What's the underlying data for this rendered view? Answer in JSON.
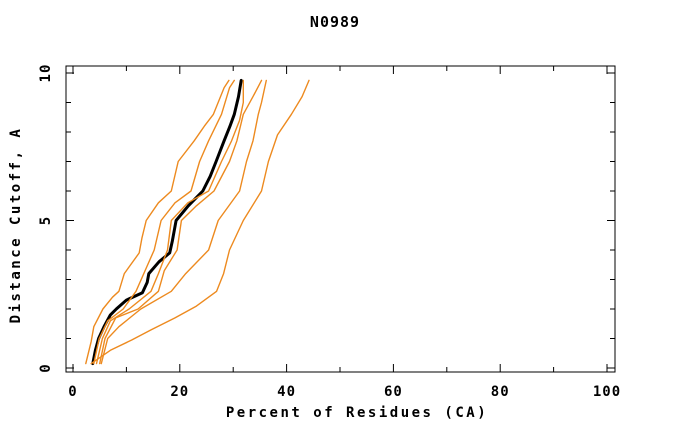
{
  "chart_data": {
    "type": "line",
    "title": "N0989",
    "xlabel": "Percent of Residues (CA)",
    "ylabel": "Distance Cutoff, A",
    "xlim": [
      0,
      100
    ],
    "ylim": [
      0,
      10
    ],
    "x_major_ticks": [
      0,
      20,
      40,
      60,
      80,
      100
    ],
    "x_minor_ticks": [
      10,
      30,
      50,
      70,
      90
    ],
    "x_tick_labels": [
      "0",
      "20",
      "40",
      "60",
      "80",
      "100"
    ],
    "y_major_ticks": [
      0,
      5,
      10
    ],
    "y_minor_ticks": [
      1,
      2,
      3,
      4,
      6,
      7,
      8,
      9
    ],
    "y_tick_labels": [
      "0",
      "5",
      "10"
    ],
    "grid": false,
    "legend_position": "none",
    "colors": {
      "main_model": "#000000",
      "reference_lines": "#ED8A1F",
      "frame": "#000000"
    },
    "series": [
      {
        "name": "main-model-black",
        "color": "#000000",
        "width": 3,
        "points": [
          [
            3.7,
            0.15
          ],
          [
            4.2,
            0.6
          ],
          [
            4.8,
            1.0
          ],
          [
            5.8,
            1.4
          ],
          [
            7.0,
            1.8
          ],
          [
            8.1,
            2.0
          ],
          [
            10.0,
            2.3
          ],
          [
            13.0,
            2.55
          ],
          [
            13.9,
            2.9
          ],
          [
            14.2,
            3.2
          ],
          [
            16.1,
            3.6
          ],
          [
            18.1,
            3.9
          ],
          [
            18.6,
            4.3
          ],
          [
            19.3,
            5.0
          ],
          [
            21.6,
            5.5
          ],
          [
            24.3,
            6.0
          ],
          [
            25.7,
            6.5
          ],
          [
            26.8,
            7.0
          ],
          [
            28.3,
            7.7
          ],
          [
            29.4,
            8.2
          ],
          [
            30.2,
            8.6
          ],
          [
            31.0,
            9.2
          ],
          [
            31.5,
            9.75
          ]
        ]
      },
      {
        "name": "reference-orange-1",
        "color": "#ED8A1F",
        "width": 1.4,
        "points": [
          [
            2.4,
            0.15
          ],
          [
            3.4,
            0.9
          ],
          [
            3.9,
            1.4
          ],
          [
            5.6,
            2.0
          ],
          [
            7.4,
            2.4
          ],
          [
            8.6,
            2.6
          ],
          [
            9.6,
            3.2
          ],
          [
            12.4,
            3.9
          ],
          [
            12.9,
            4.4
          ],
          [
            13.7,
            5.0
          ],
          [
            16.0,
            5.6
          ],
          [
            18.4,
            6.0
          ],
          [
            19.7,
            7.0
          ],
          [
            22.7,
            7.7
          ],
          [
            24.6,
            8.2
          ],
          [
            26.3,
            8.6
          ],
          [
            28.3,
            9.5
          ],
          [
            29.2,
            9.75
          ]
        ]
      },
      {
        "name": "reference-orange-2",
        "color": "#ED8A1F",
        "width": 1.4,
        "points": [
          [
            3.9,
            0.15
          ],
          [
            4.9,
            1.0
          ],
          [
            6.5,
            1.6
          ],
          [
            9.4,
            2.0
          ],
          [
            11.8,
            2.6
          ],
          [
            13.5,
            3.3
          ],
          [
            15.2,
            4.0
          ],
          [
            16.5,
            5.0
          ],
          [
            19.1,
            5.6
          ],
          [
            22.1,
            6.0
          ],
          [
            23.7,
            7.0
          ],
          [
            25.4,
            7.7
          ],
          [
            27.8,
            8.6
          ],
          [
            29.3,
            9.5
          ],
          [
            30.2,
            9.75
          ]
        ]
      },
      {
        "name": "reference-orange-3",
        "color": "#ED8A1F",
        "width": 1.4,
        "points": [
          [
            4.4,
            0.15
          ],
          [
            5.5,
            1.0
          ],
          [
            7.0,
            1.6
          ],
          [
            10.5,
            2.0
          ],
          [
            14.6,
            2.6
          ],
          [
            16.0,
            3.2
          ],
          [
            17.7,
            4.0
          ],
          [
            18.4,
            5.0
          ],
          [
            21.5,
            5.6
          ],
          [
            25.4,
            6.0
          ],
          [
            27.8,
            7.0
          ],
          [
            29.7,
            7.7
          ],
          [
            31.2,
            8.4
          ],
          [
            31.9,
            9.0
          ],
          [
            31.9,
            9.75
          ]
        ]
      },
      {
        "name": "reference-orange-4",
        "color": "#ED8A1F",
        "width": 1.4,
        "points": [
          [
            5.0,
            0.15
          ],
          [
            6.0,
            1.0
          ],
          [
            8.0,
            1.7
          ],
          [
            12.2,
            2.0
          ],
          [
            16.0,
            2.6
          ],
          [
            17.1,
            3.3
          ],
          [
            19.5,
            4.0
          ],
          [
            20.3,
            5.0
          ],
          [
            23.1,
            5.5
          ],
          [
            26.4,
            6.0
          ],
          [
            29.3,
            7.0
          ],
          [
            30.7,
            7.7
          ],
          [
            31.9,
            8.6
          ],
          [
            33.7,
            9.2
          ],
          [
            35.3,
            9.75
          ]
        ]
      },
      {
        "name": "reference-orange-5",
        "color": "#ED8A1F",
        "width": 1.4,
        "points": [
          [
            5.3,
            0.15
          ],
          [
            6.5,
            1.0
          ],
          [
            8.6,
            1.4
          ],
          [
            12.7,
            2.0
          ],
          [
            18.4,
            2.6
          ],
          [
            21.1,
            3.2
          ],
          [
            25.4,
            4.0
          ],
          [
            27.2,
            5.0
          ],
          [
            31.2,
            6.0
          ],
          [
            32.5,
            7.0
          ],
          [
            33.7,
            7.7
          ],
          [
            34.7,
            8.6
          ],
          [
            35.3,
            9.0
          ],
          [
            36.2,
            9.75
          ]
        ]
      },
      {
        "name": "reference-orange-6",
        "color": "#ED8A1F",
        "width": 1.4,
        "points": [
          [
            3.4,
            0.15
          ],
          [
            7.0,
            0.6
          ],
          [
            11.0,
            0.95
          ],
          [
            14.7,
            1.3
          ],
          [
            19.1,
            1.7
          ],
          [
            23.1,
            2.1
          ],
          [
            26.9,
            2.6
          ],
          [
            28.2,
            3.2
          ],
          [
            29.3,
            4.0
          ],
          [
            31.9,
            5.0
          ],
          [
            35.3,
            6.0
          ],
          [
            36.6,
            7.0
          ],
          [
            38.3,
            7.9
          ],
          [
            40.9,
            8.6
          ],
          [
            42.9,
            9.2
          ],
          [
            44.2,
            9.75
          ]
        ]
      }
    ]
  }
}
